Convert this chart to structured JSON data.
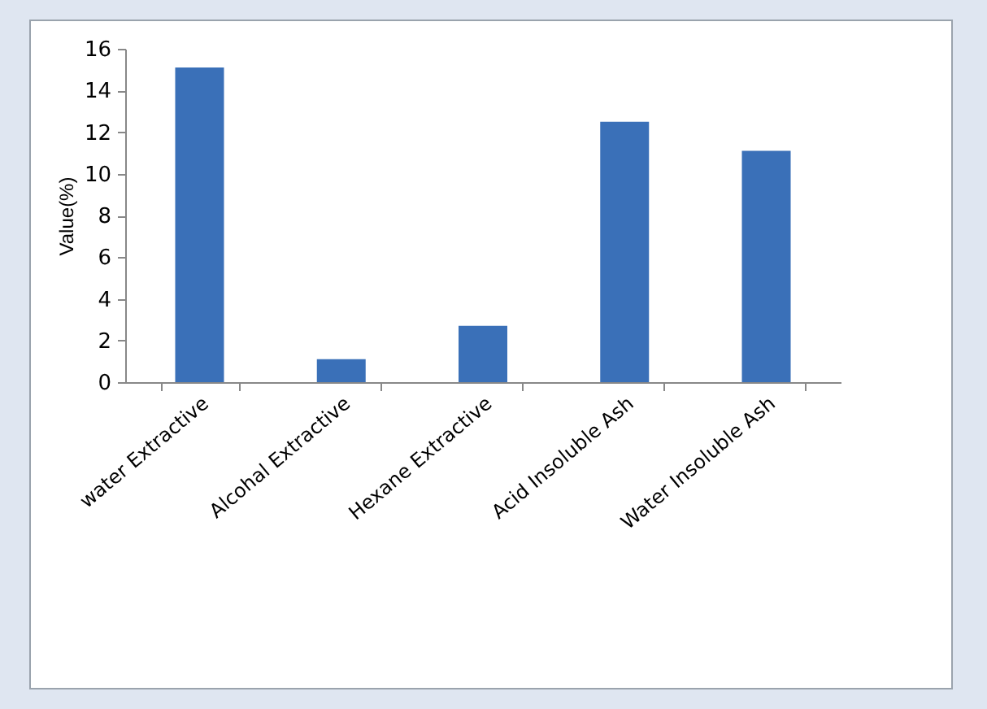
{
  "chart_data": {
    "type": "bar",
    "ylabel": "Value(%)",
    "categories": [
      "water Extractive",
      "Alcohal Extractive",
      "Hexane Extractive",
      "Acid Insoluble Ash",
      "Water Insoluble Ash"
    ],
    "values": [
      15.1,
      1.1,
      2.7,
      12.5,
      11.1
    ],
    "color": "#3a70b8",
    "ylim": [
      0,
      16
    ],
    "yticks": [
      0,
      2,
      4,
      6,
      8,
      10,
      12,
      14,
      16
    ],
    "grid": false
  }
}
